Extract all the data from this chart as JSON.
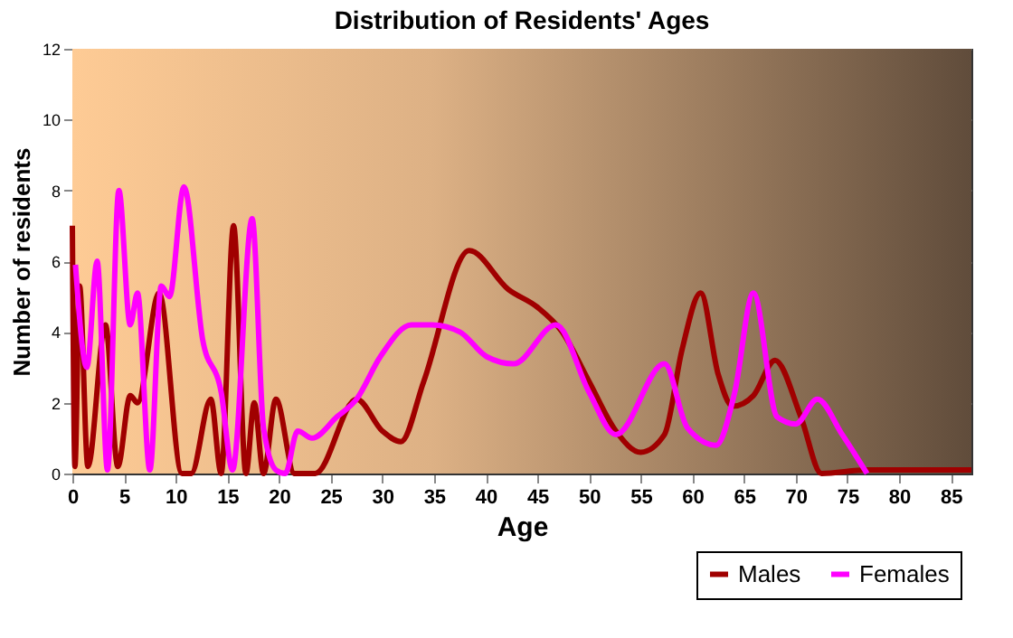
{
  "chart_data": {
    "type": "line",
    "title": "Distribution of Residents' Ages",
    "xlabel": "Age",
    "ylabel": "Number of residents",
    "xlim": [
      0,
      87
    ],
    "xticks": [
      0,
      5,
      10,
      15,
      20,
      25,
      30,
      35,
      40,
      45,
      50,
      55,
      60,
      65,
      70,
      75,
      80,
      85
    ],
    "ylim": [
      0,
      12
    ],
    "yticks": [
      0,
      2,
      4,
      6,
      8,
      10,
      12
    ],
    "grid": true,
    "legend": "bottom right",
    "line_style": "solid",
    "marker": "none",
    "series": [
      {
        "name": "Males",
        "color": "#a00000",
        "x": [
          0,
          0.25,
          0.7,
          1.5,
          3.2,
          4.4,
          5.6,
          6.3,
          8.4,
          10.6,
          11.5,
          13.4,
          14.4,
          15.6,
          16.8,
          17.6,
          18.5,
          19.7,
          21.5,
          23.5,
          27.5,
          30,
          31.8,
          34,
          38.4,
          42.2,
          45,
          47.4,
          50,
          52.6,
          55,
          57.3,
          59,
          60.8,
          62.5,
          63.9,
          65.9,
          68,
          70.5,
          72.5,
          76.9,
          87
        ],
        "values": [
          7,
          0.2,
          5.3,
          0.2,
          4.2,
          0.2,
          2.2,
          2,
          5.1,
          0,
          0,
          2.1,
          0,
          7,
          0,
          2,
          0,
          2.1,
          0,
          0,
          2.1,
          1.2,
          0.9,
          2.6,
          6.3,
          5.2,
          4.7,
          4,
          2.6,
          1.2,
          0.6,
          1.1,
          3.5,
          5.1,
          2.8,
          1.9,
          2.2,
          3.2,
          1.6,
          0,
          0.1,
          0.1
        ]
      },
      {
        "name": "Females",
        "color": "#ff00ff",
        "x": [
          0.3,
          1.4,
          2.4,
          3.4,
          4.5,
          5.6,
          6.3,
          7.5,
          8.6,
          9.4,
          10.8,
          12.6,
          14.4,
          15.5,
          17.4,
          18.5,
          19.7,
          20.6,
          21.8,
          23.2,
          25.6,
          27.5,
          29.8,
          32.8,
          34.8,
          37.5,
          40.1,
          42.7,
          46.8,
          50,
          52.6,
          57.3,
          59.5,
          62.3,
          64.1,
          65.9,
          68.2,
          70,
          72.1,
          74.5,
          76.9
        ],
        "values": [
          5.9,
          3,
          6,
          0.1,
          8,
          4.2,
          5.1,
          0.1,
          5.3,
          5,
          8.1,
          3.8,
          2.3,
          0.1,
          7.2,
          1.3,
          0.1,
          0,
          1.2,
          1,
          1.6,
          2.1,
          3.3,
          4.2,
          4.2,
          4,
          3.3,
          3.1,
          4.2,
          2.3,
          1.1,
          3.1,
          1.3,
          0.8,
          2.3,
          5.1,
          1.6,
          1.4,
          2.1,
          1.1,
          0
        ]
      }
    ]
  }
}
